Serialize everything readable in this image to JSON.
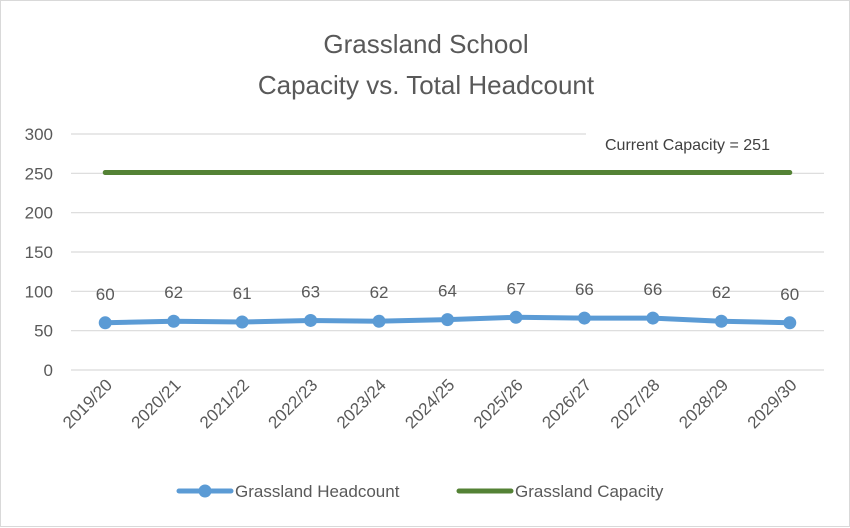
{
  "chart_data": {
    "type": "line",
    "title": "Grassland School",
    "subtitle": "Capacity vs. Total Headcount",
    "xlabel": "",
    "ylabel": "",
    "ylim": [
      0,
      300
    ],
    "yticks": [
      0,
      50,
      100,
      150,
      200,
      250,
      300
    ],
    "grid": true,
    "legend_position": "bottom",
    "categories": [
      "2019/20",
      "2020/21",
      "2021/22",
      "2022/23",
      "2023/24",
      "2024/25",
      "2025/26",
      "2026/27",
      "2027/28",
      "2028/29",
      "2029/30"
    ],
    "series": [
      {
        "name": "Grassland Headcount",
        "color": "#5b9bd5",
        "marker": "circle",
        "values": [
          60,
          62,
          61,
          63,
          62,
          64,
          67,
          66,
          66,
          62,
          60
        ],
        "data_labels": [
          "60",
          "62",
          "61",
          "63",
          "62",
          "64",
          "67",
          "66",
          "66",
          "62",
          "60"
        ]
      },
      {
        "name": "Grassland Capacity",
        "color": "#548235",
        "marker": "none",
        "values": [
          251,
          251,
          251,
          251,
          251,
          251,
          251,
          251,
          251,
          251,
          251
        ]
      }
    ],
    "annotations": [
      {
        "text": "Current Capacity = 251"
      }
    ]
  }
}
